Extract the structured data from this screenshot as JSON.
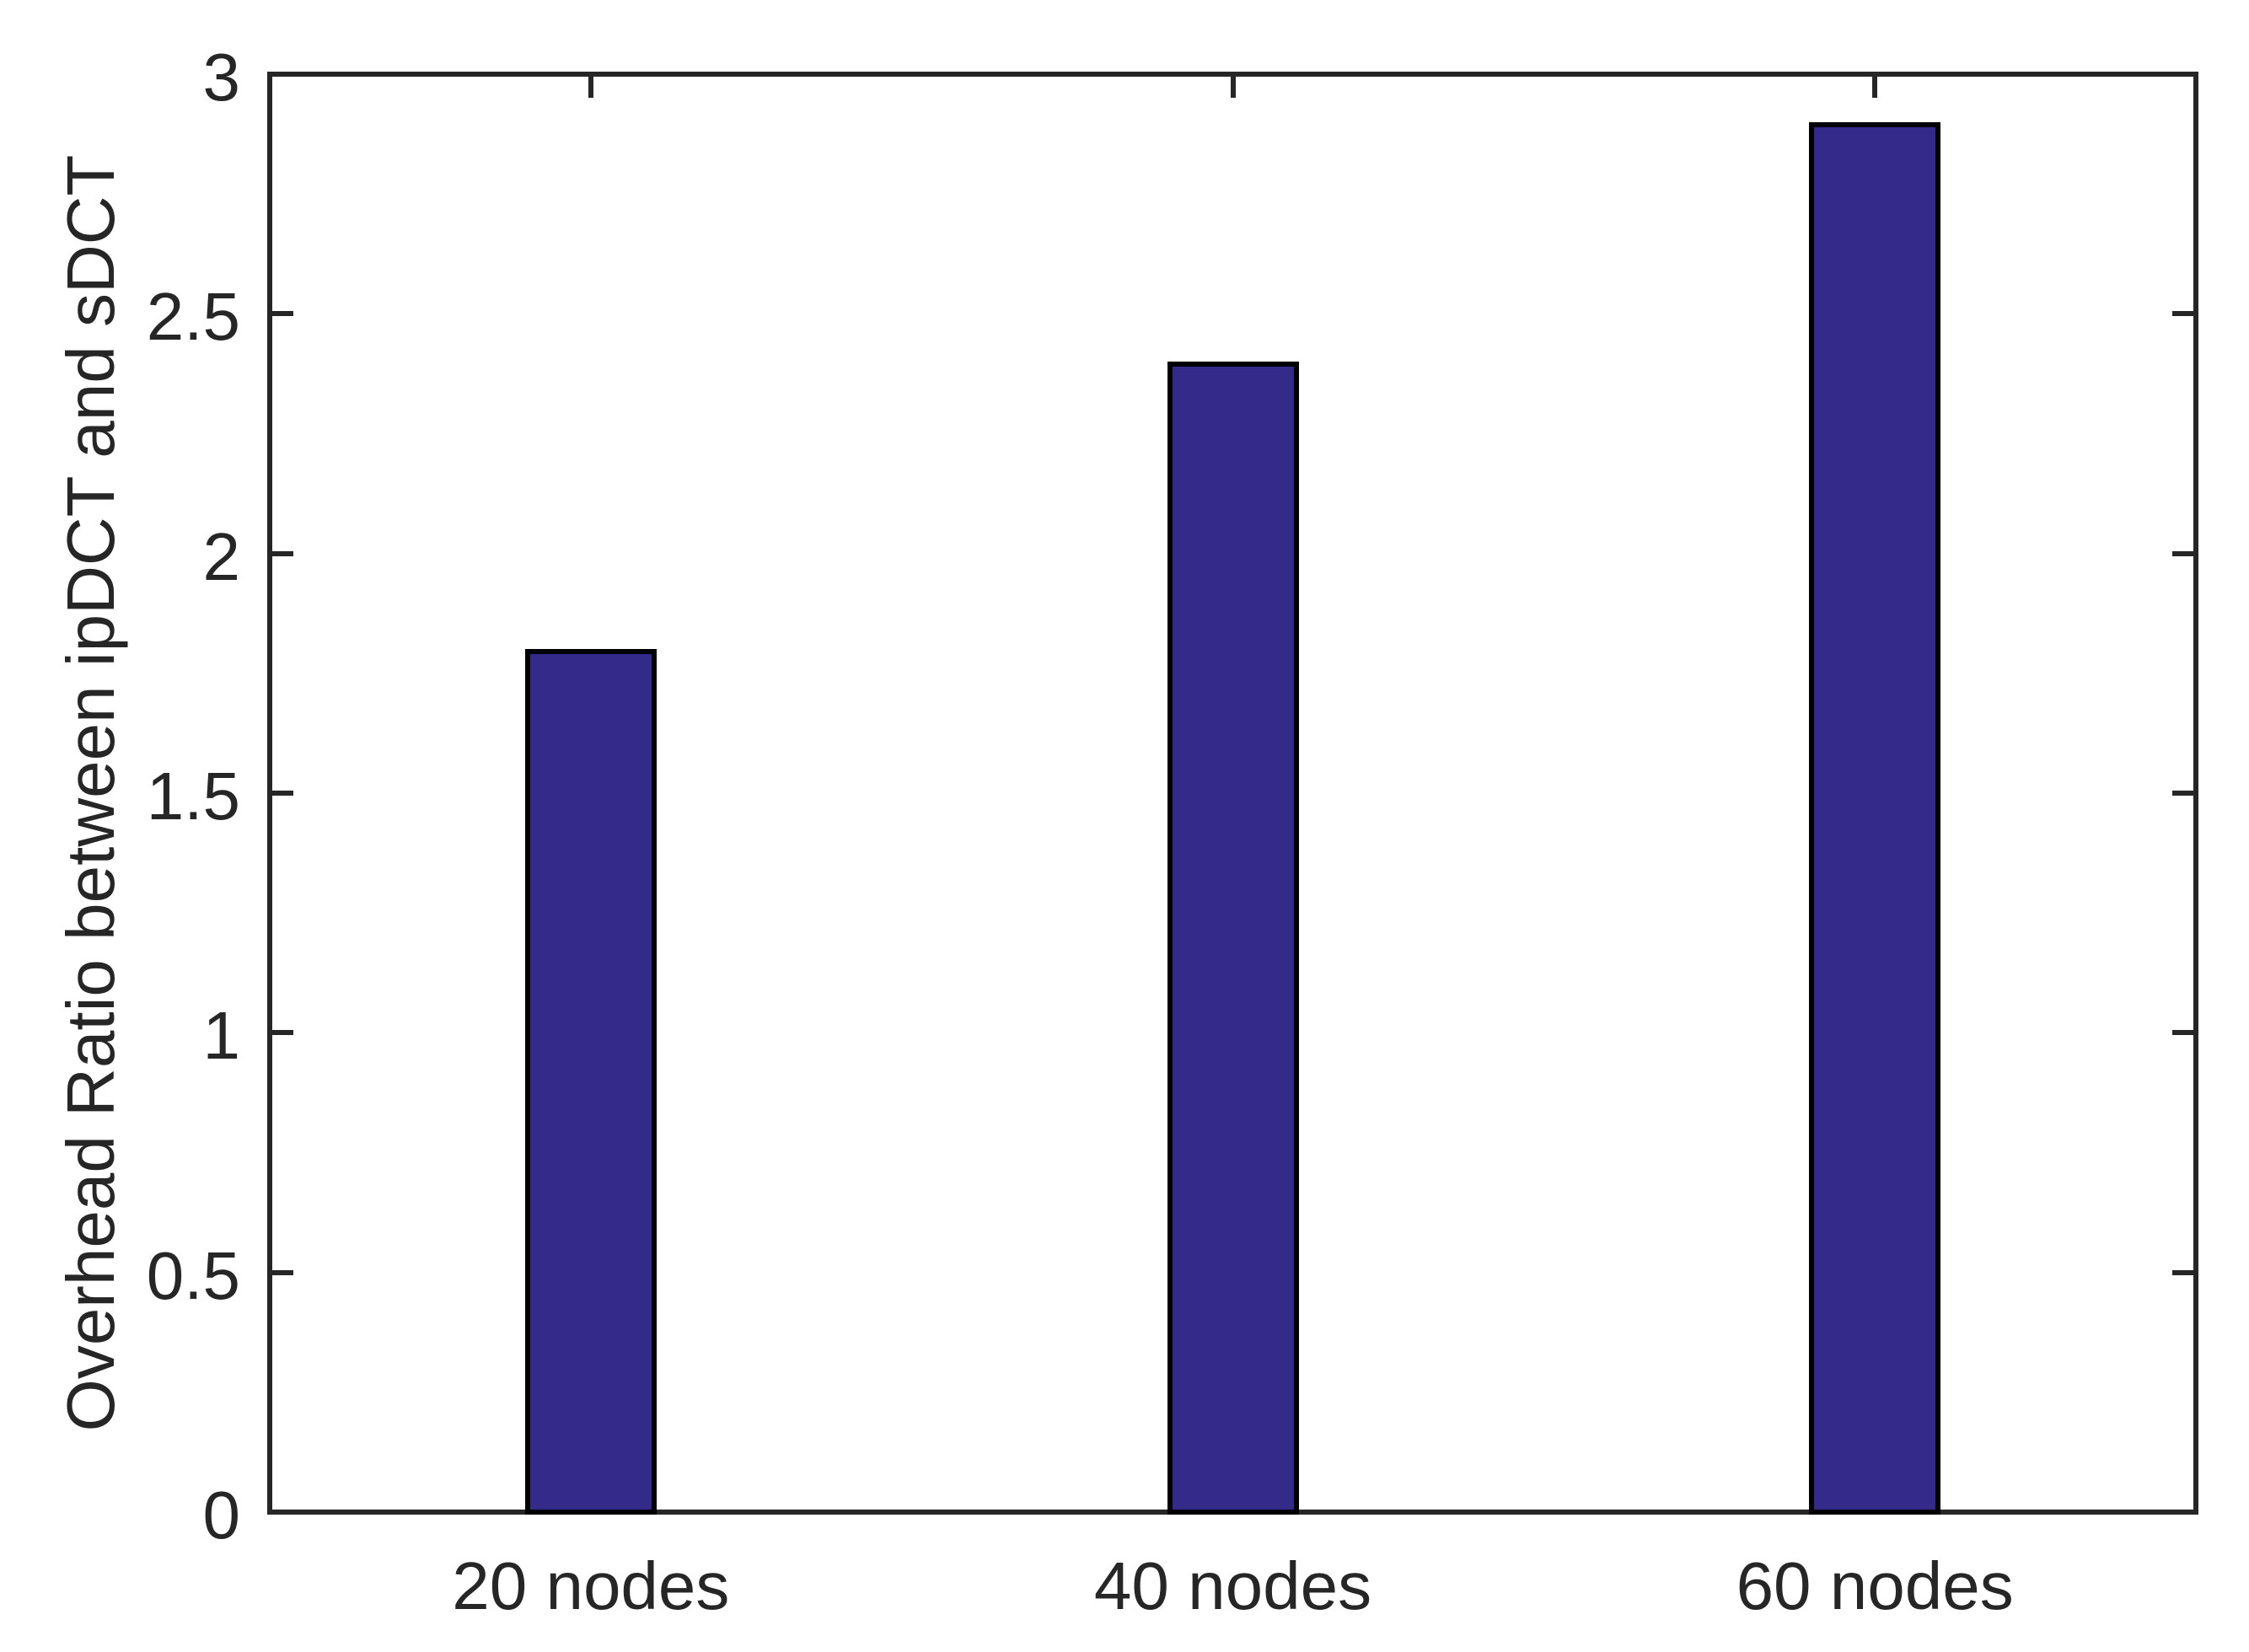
{
  "figure": {
    "background_color": "#ffffff",
    "axis_color": "#262626",
    "text_color": "#262626"
  },
  "chart_data": {
    "type": "bar",
    "categories": [
      "20 nodes",
      "40 nodes",
      "60 nodes"
    ],
    "values": [
      1.8,
      2.4,
      2.9
    ],
    "ylabel": "Overhead Ratio between ipDCT and sDCT",
    "ylim": [
      0,
      3
    ],
    "yticks": [
      0,
      0.5,
      1,
      1.5,
      2,
      2.5,
      3
    ],
    "ytick_labels": [
      "0",
      "0.5",
      "1",
      "1.5",
      "2",
      "2.5",
      "3"
    ],
    "bar_color": "#342a8a",
    "bar_edge_color": "#000000",
    "grid": false,
    "legend": false,
    "tick_direction": "in",
    "box": true
  }
}
